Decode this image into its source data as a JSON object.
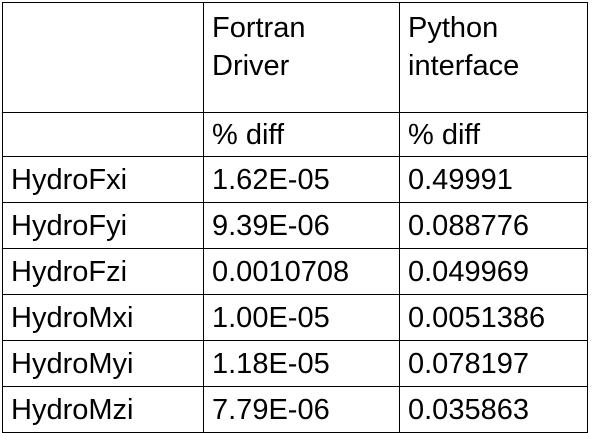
{
  "table": {
    "header": {
      "col1": "",
      "col2_line1": "Fortran",
      "col2_line2": "Driver",
      "col3_line1": "Python",
      "col3_line2": "interface"
    },
    "subheader": {
      "col1": "",
      "col2": "% diff",
      "col3": "% diff"
    },
    "rows": [
      {
        "label": "HydroFxi",
        "fortran": "1.62E-05",
        "python": "0.49991"
      },
      {
        "label": "HydroFyi",
        "fortran": "9.39E-06",
        "python": "0.088776"
      },
      {
        "label": "HydroFzi",
        "fortran": "0.0010708",
        "python": "0.049969"
      },
      {
        "label": "HydroMxi",
        "fortran": "1.00E-05",
        "python": "0.0051386"
      },
      {
        "label": "HydroMyi",
        "fortran": "1.18E-05",
        "python": "0.078197"
      },
      {
        "label": "HydroMzi",
        "fortran": "7.79E-06",
        "python": "0.035863"
      }
    ]
  }
}
